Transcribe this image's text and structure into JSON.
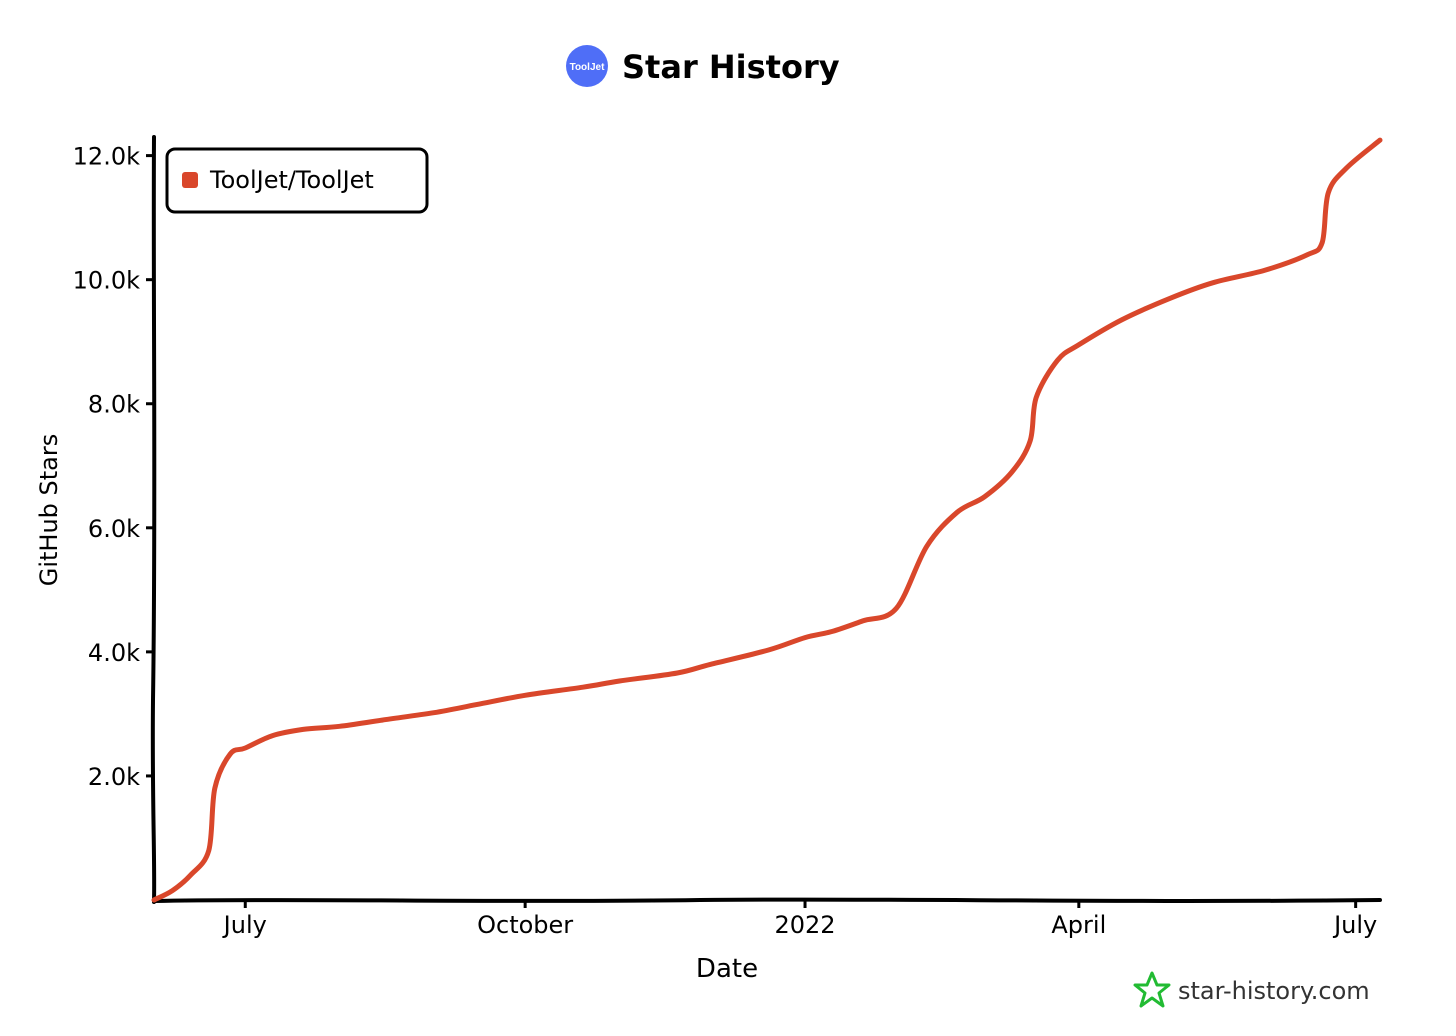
{
  "chart_data": {
    "type": "line",
    "title": "Star History",
    "logo_label": "ToolJet",
    "xlabel": "Date",
    "ylabel": "GitHub Stars",
    "x_ticks": [
      {
        "label": "July",
        "date": "2021-07-01"
      },
      {
        "label": "October",
        "date": "2021-10-01"
      },
      {
        "label": "2022",
        "date": "2022-01-01"
      },
      {
        "label": "April",
        "date": "2022-04-01"
      },
      {
        "label": "July",
        "date": "2022-07-01"
      }
    ],
    "y_ticks": [
      {
        "label": "2.0k",
        "value": 2000
      },
      {
        "label": "4.0k",
        "value": 4000
      },
      {
        "label": "6.0k",
        "value": 6000
      },
      {
        "label": "8.0k",
        "value": 8000
      },
      {
        "label": "10.0k",
        "value": 10000
      },
      {
        "label": "12.0k",
        "value": 12000
      }
    ],
    "xlim": [
      "2021-06-01",
      "2022-07-09"
    ],
    "ylim": [
      0,
      12300
    ],
    "grid": false,
    "legend_position": "top-left",
    "series": [
      {
        "name": "ToolJet/ToolJet",
        "color": "#d9472b",
        "points": [
          [
            "2021-06-01",
            0
          ],
          [
            "2021-06-07",
            150
          ],
          [
            "2021-06-13",
            400
          ],
          [
            "2021-06-19",
            800
          ],
          [
            "2021-06-21",
            1800
          ],
          [
            "2021-06-26",
            2350
          ],
          [
            "2021-07-01",
            2450
          ],
          [
            "2021-07-10",
            2650
          ],
          [
            "2021-07-20",
            2750
          ],
          [
            "2021-08-01",
            2800
          ],
          [
            "2021-08-15",
            2900
          ],
          [
            "2021-09-01",
            3020
          ],
          [
            "2021-09-15",
            3150
          ],
          [
            "2021-10-01",
            3300
          ],
          [
            "2021-10-20",
            3430
          ],
          [
            "2021-11-01",
            3530
          ],
          [
            "2021-11-20",
            3660
          ],
          [
            "2021-12-01",
            3800
          ],
          [
            "2021-12-20",
            4030
          ],
          [
            "2022-01-01",
            4230
          ],
          [
            "2022-01-10",
            4330
          ],
          [
            "2022-01-20",
            4500
          ],
          [
            "2022-01-31",
            4700
          ],
          [
            "2022-02-10",
            5700
          ],
          [
            "2022-02-20",
            6250
          ],
          [
            "2022-03-01",
            6500
          ],
          [
            "2022-03-10",
            6900
          ],
          [
            "2022-03-16",
            7400
          ],
          [
            "2022-03-18",
            8100
          ],
          [
            "2022-03-25",
            8700
          ],
          [
            "2022-04-01",
            8950
          ],
          [
            "2022-04-15",
            9350
          ],
          [
            "2022-05-01",
            9700
          ],
          [
            "2022-05-15",
            9950
          ],
          [
            "2022-06-01",
            10150
          ],
          [
            "2022-06-15",
            10400
          ],
          [
            "2022-06-20",
            10600
          ],
          [
            "2022-06-22",
            11400
          ],
          [
            "2022-06-28",
            11800
          ],
          [
            "2022-07-09",
            12250
          ]
        ]
      }
    ]
  },
  "watermark": {
    "text": "star-history.com",
    "color": "#22bb33"
  }
}
